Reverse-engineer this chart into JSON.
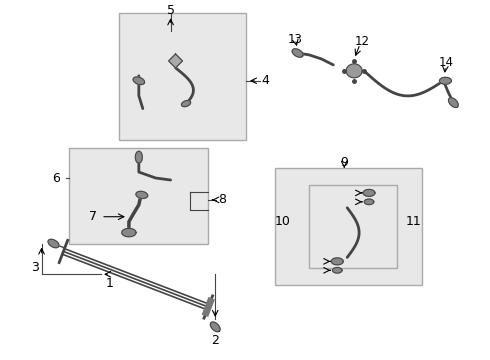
{
  "bg_color": "#ffffff",
  "fig_width": 4.9,
  "fig_height": 3.6,
  "dpi": 100,
  "box_color": "#aaaaaa",
  "box_fill": "#e8e8e8",
  "part_color": "#444444",
  "label_color": "#000000",
  "arrow_color": "#000000"
}
